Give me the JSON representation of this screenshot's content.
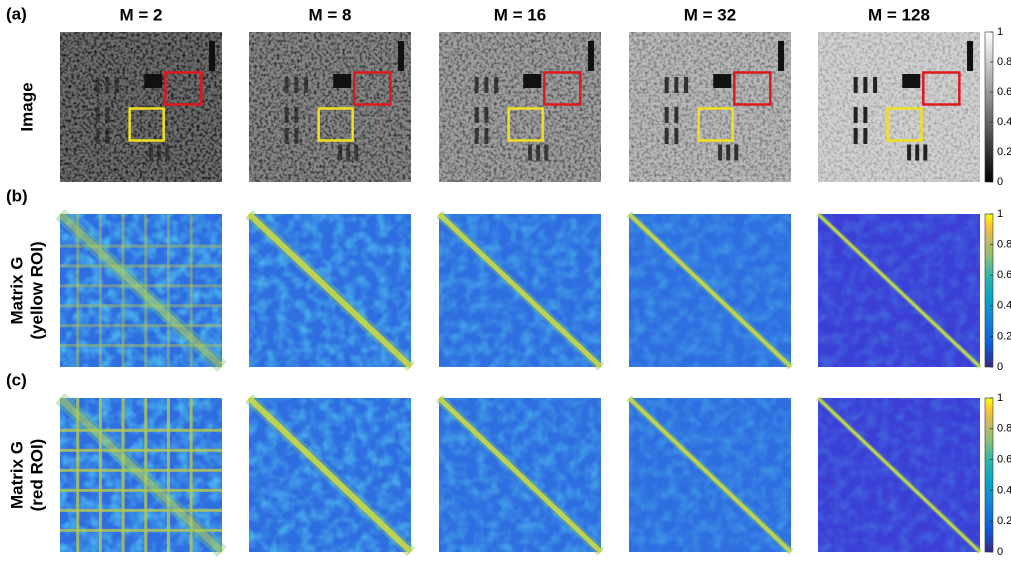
{
  "panels": {
    "columns": [
      "M = 2",
      "M = 8",
      "M = 16",
      "M = 32",
      "M = 128"
    ],
    "rows": [
      {
        "letter": "(a)",
        "label": [
          "Image"
        ],
        "colorbar": {
          "colormap": "gray",
          "lim": [
            0,
            1
          ],
          "ticks": [
            0,
            0.2,
            0.4,
            0.6,
            0.8,
            1
          ]
        }
      },
      {
        "letter": "(b)",
        "label": [
          "Matrix G",
          "(yellow ROI)"
        ],
        "colorbar": {
          "colormap": "parula",
          "lim": [
            0,
            1
          ],
          "ticks": [
            0,
            0.2,
            0.4,
            0.6,
            0.8,
            1
          ]
        }
      },
      {
        "letter": "(c)",
        "label": [
          "Matrix G",
          "(red ROI)"
        ],
        "colorbar": {
          "colormap": "parula",
          "lim": [
            0,
            1
          ],
          "ticks": [
            0,
            0.2,
            0.4,
            0.6,
            0.8,
            1
          ]
        }
      }
    ]
  }
}
